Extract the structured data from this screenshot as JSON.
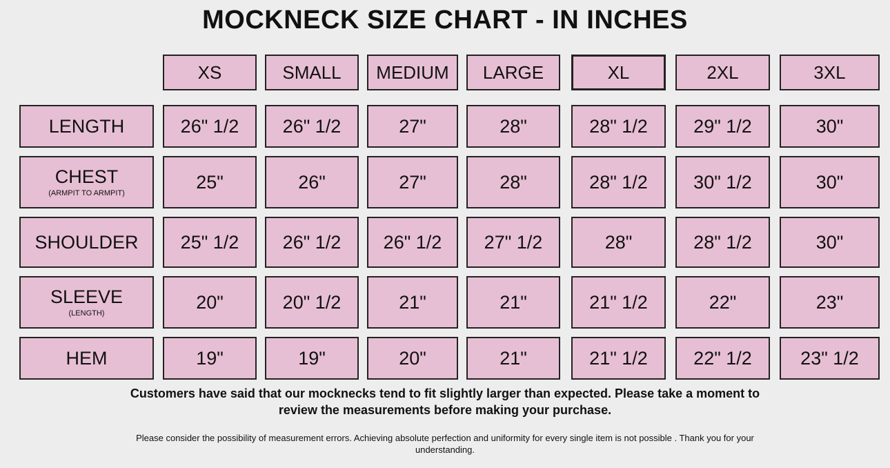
{
  "title": "MOCKNECK SIZE CHART - IN INCHES",
  "sizes": [
    "XS",
    "SMALL",
    "MEDIUM",
    "LARGE",
    "XL",
    "2XL",
    "3XL"
  ],
  "rows": [
    {
      "label": "LENGTH",
      "sublabel": "",
      "values": [
        "26\" 1/2",
        "26\" 1/2",
        "27\"",
        "28\"",
        "28\" 1/2",
        "29\" 1/2",
        "30\""
      ]
    },
    {
      "label": "CHEST",
      "sublabel": "(ARMPIT TO ARMPIT)",
      "values": [
        "25\"",
        "26\"",
        "27\"",
        "28\"",
        "28\" 1/2",
        "30\" 1/2",
        "30\""
      ]
    },
    {
      "label": "SHOULDER",
      "sublabel": "",
      "values": [
        "25\" 1/2",
        "26\" 1/2",
        "26\" 1/2",
        "27\" 1/2",
        "28\"",
        "28\" 1/2",
        "30\""
      ]
    },
    {
      "label": "SLEEVE",
      "sublabel": "(LENGTH)",
      "values": [
        "20\"",
        "20\" 1/2",
        "21\"",
        "21\"",
        "21\" 1/2",
        "22\"",
        "23\""
      ]
    },
    {
      "label": "HEM",
      "sublabel": "",
      "values": [
        "19\"",
        "19\"",
        "20\"",
        "21\"",
        "21\" 1/2",
        "22\" 1/2",
        "23\" 1/2"
      ]
    }
  ],
  "notes": {
    "fit_notice": "Customers have said that our mocknecks tend to fit slightly larger than expected. Please take a moment to review the measurements before making your purchase.",
    "disclaimer": "Please consider the possibility of measurement errors. Achieving absolute perfection and uniformity for every single item is not possible . Thank you for your understanding."
  },
  "colors": {
    "cell_fill": "#e7bfd4",
    "border": "#222222",
    "background": "#ededed"
  }
}
